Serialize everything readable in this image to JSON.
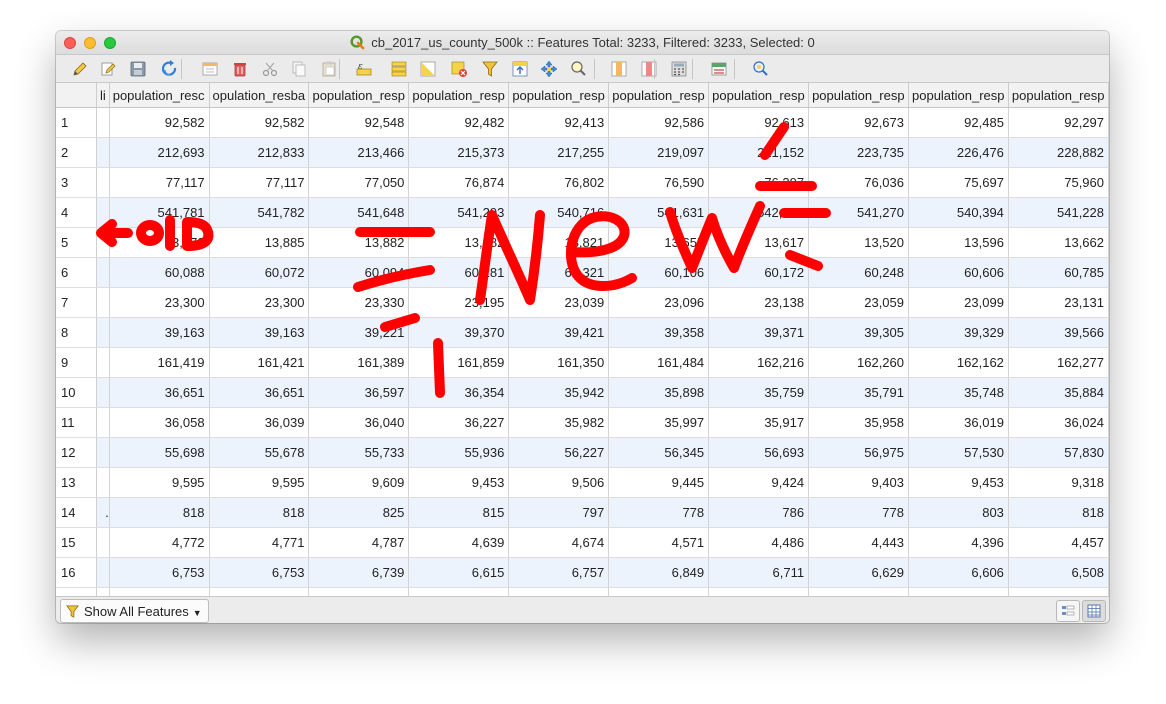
{
  "window": {
    "title": "cb_2017_us_county_500k :: Features Total: 3233, Filtered: 3233, Selected: 0"
  },
  "toolbar": {
    "buttons": [
      {
        "name": "toggle-editing-button",
        "icon": "pencil-icon"
      },
      {
        "name": "toggle-multi-edit-button",
        "icon": "multi-edit-icon"
      },
      {
        "name": "save-edits-button",
        "icon": "save-icon"
      },
      {
        "name": "reload-table-button",
        "icon": "reload-icon"
      },
      {
        "name": "add-feature-button",
        "icon": "add-feature-icon"
      },
      {
        "name": "delete-selected-button",
        "icon": "trash-icon"
      },
      {
        "name": "cut-button",
        "icon": "scissors-icon"
      },
      {
        "name": "copy-button",
        "icon": "copy-icon"
      },
      {
        "name": "paste-button",
        "icon": "paste-icon"
      },
      {
        "name": "select-by-expression-button",
        "icon": "expression-select-icon"
      },
      {
        "name": "select-all-button",
        "icon": "select-all-icon"
      },
      {
        "name": "invert-selection-button",
        "icon": "invert-selection-icon"
      },
      {
        "name": "deselect-all-button",
        "icon": "deselect-icon"
      },
      {
        "name": "filter-select-form-button",
        "icon": "funnel-icon"
      },
      {
        "name": "move-selection-top-button",
        "icon": "move-top-icon"
      },
      {
        "name": "pan-to-selected-button",
        "icon": "pan-icon"
      },
      {
        "name": "zoom-to-selected-button",
        "icon": "zoom-selection-icon"
      },
      {
        "name": "new-field-button",
        "icon": "new-field-icon"
      },
      {
        "name": "delete-field-button",
        "icon": "delete-field-icon"
      },
      {
        "name": "field-calculator-button",
        "icon": "calculator-icon"
      },
      {
        "name": "conditional-format-button",
        "icon": "conditional-format-icon"
      },
      {
        "name": "dock-table-button",
        "icon": "dock-icon"
      }
    ]
  },
  "table": {
    "columns": [
      "li",
      "population_resc",
      "opulation_resba",
      "population_resp",
      "population_resp",
      "population_resp",
      "population_resp",
      "population_resp",
      "population_resp",
      "population_resp",
      "population_resp"
    ],
    "rows": [
      {
        "id": "1",
        "cut": "",
        "values": [
          "92,582",
          "92,582",
          "92,548",
          "92,482",
          "92,413",
          "92,586",
          "92,613",
          "92,673",
          "92,485",
          "92,297"
        ]
      },
      {
        "id": "2",
        "cut": "",
        "values": [
          "212,693",
          "212,833",
          "213,466",
          "215,373",
          "217,255",
          "219,097",
          "221,152",
          "223,735",
          "226,476",
          "228,882"
        ]
      },
      {
        "id": "3",
        "cut": "",
        "values": [
          "77,117",
          "77,117",
          "77,050",
          "76,874",
          "76,802",
          "76,590",
          "76,297",
          "76,036",
          "75,697",
          "75,960"
        ]
      },
      {
        "id": "4",
        "cut": "",
        "values": [
          "541,781",
          "541,782",
          "541,648",
          "541,293",
          "540,716",
          "541,631",
          "542,095",
          "541,270",
          "540,394",
          "541,228"
        ]
      },
      {
        "id": "5",
        "cut": "",
        "values": [
          "13,872",
          "13,885",
          "13,882",
          "13,882",
          "13,821",
          "13,655",
          "13,617",
          "13,520",
          "13,596",
          "13,662"
        ]
      },
      {
        "id": "6",
        "cut": "",
        "values": [
          "60,088",
          "60,072",
          "60,094",
          "60,281",
          "60,321",
          "60,106",
          "60,172",
          "60,248",
          "60,606",
          "60,785"
        ]
      },
      {
        "id": "7",
        "cut": "",
        "values": [
          "23,300",
          "23,300",
          "23,330",
          "23,195",
          "23,039",
          "23,096",
          "23,138",
          "23,059",
          "23,099",
          "23,131"
        ]
      },
      {
        "id": "8",
        "cut": "",
        "values": [
          "39,163",
          "39,163",
          "39,221",
          "39,370",
          "39,421",
          "39,358",
          "39,371",
          "39,305",
          "39,329",
          "39,566"
        ]
      },
      {
        "id": "9",
        "cut": "",
        "values": [
          "161,419",
          "161,421",
          "161,389",
          "161,859",
          "161,350",
          "161,484",
          "162,216",
          "162,260",
          "162,162",
          "162,277"
        ]
      },
      {
        "id": "10",
        "cut": "",
        "values": [
          "36,651",
          "36,651",
          "36,597",
          "36,354",
          "35,942",
          "35,898",
          "35,759",
          "35,791",
          "35,748",
          "35,884"
        ]
      },
      {
        "id": "11",
        "cut": "",
        "values": [
          "36,058",
          "36,039",
          "36,040",
          "36,227",
          "35,982",
          "35,997",
          "35,917",
          "35,958",
          "36,019",
          "36,024"
        ]
      },
      {
        "id": "12",
        "cut": "",
        "values": [
          "55,698",
          "55,678",
          "55,733",
          "55,936",
          "56,227",
          "56,345",
          "56,693",
          "56,975",
          "57,530",
          "57,830"
        ]
      },
      {
        "id": "13",
        "cut": "",
        "values": [
          "9,595",
          "9,595",
          "9,609",
          "9,453",
          "9,506",
          "9,445",
          "9,424",
          "9,403",
          "9,453",
          "9,318"
        ]
      },
      {
        "id": "14",
        "cut": ".",
        "values": [
          "818",
          "818",
          "825",
          "815",
          "797",
          "778",
          "786",
          "778",
          "803",
          "818"
        ]
      },
      {
        "id": "15",
        "cut": "",
        "values": [
          "4,772",
          "4,771",
          "4,787",
          "4,639",
          "4,674",
          "4,571",
          "4,486",
          "4,443",
          "4,396",
          "4,457"
        ]
      },
      {
        "id": "16",
        "cut": "",
        "values": [
          "6,753",
          "6,753",
          "6,739",
          "6,615",
          "6,757",
          "6,849",
          "6,711",
          "6,629",
          "6,606",
          "6,508"
        ]
      },
      {
        "id": "",
        "cut": "",
        "values": [
          "",
          "",
          "",
          "",
          "",
          "",
          "",
          "",
          "",
          ""
        ]
      }
    ]
  },
  "statusbar": {
    "filter_label": "Show All Features"
  },
  "annotation": {
    "color": "#ff0000"
  }
}
